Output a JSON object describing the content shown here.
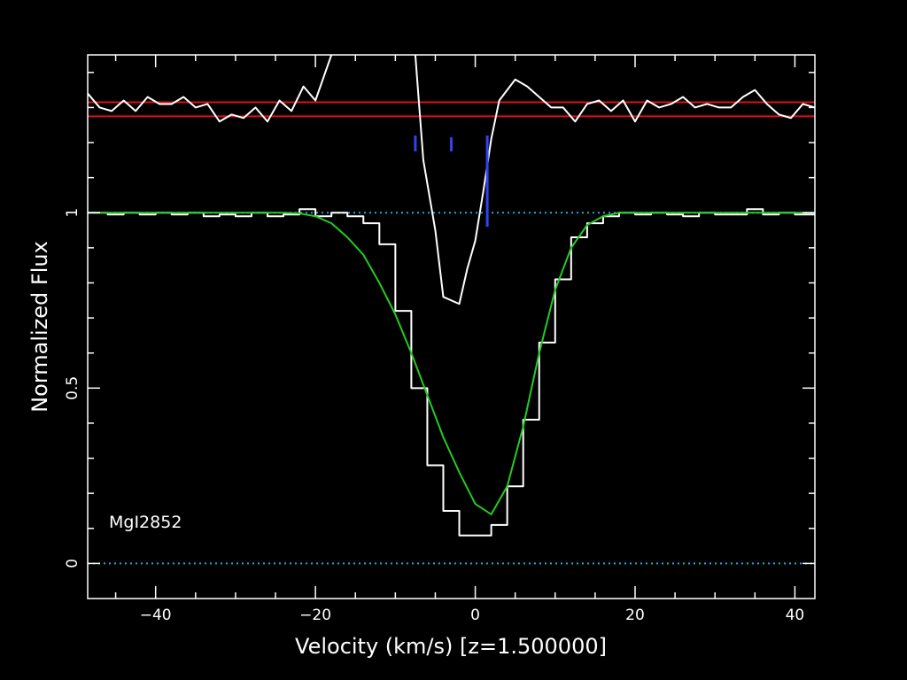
{
  "chart_data": {
    "type": "line",
    "xlabel": "Velocity (km/s) [z=1.500000]",
    "ylabel": "Normalized Flux",
    "annotation": "MgI2852",
    "xlim": [
      -48.5,
      42.5
    ],
    "ylim": [
      -0.1,
      1.45
    ],
    "x_ticks": [
      -40,
      -20,
      0,
      20,
      40
    ],
    "y_ticks": [
      0,
      0.5,
      1
    ],
    "colors": {
      "data": "#ffffff",
      "model": "#22cc22",
      "reference": "#22aadd",
      "threshold": "#dd1111",
      "component": "#3344ee",
      "axes": "#ffffff",
      "background": "#000000"
    },
    "series": [
      {
        "kind": "step",
        "color_key": "data",
        "points": [
          [
            -48.5,
            1.0
          ],
          [
            -46,
            0.995
          ],
          [
            -44,
            1.0
          ],
          [
            -42,
            0.995
          ],
          [
            -40,
            1.0
          ],
          [
            -38,
            0.995
          ],
          [
            -36,
            1.0
          ],
          [
            -34,
            0.99
          ],
          [
            -32,
            0.995
          ],
          [
            -30,
            0.99
          ],
          [
            -28,
            1.0
          ],
          [
            -26,
            0.99
          ],
          [
            -24,
            0.995
          ],
          [
            -22,
            1.01
          ],
          [
            -20,
            0.99
          ],
          [
            -18,
            1.0
          ],
          [
            -16,
            0.99
          ],
          [
            -14,
            0.97
          ],
          [
            -12,
            0.91
          ],
          [
            -10,
            0.72
          ],
          [
            -8,
            0.5
          ],
          [
            -6,
            0.28
          ],
          [
            -4,
            0.15
          ],
          [
            -2,
            0.08
          ],
          [
            0,
            0.08
          ],
          [
            2,
            0.11
          ],
          [
            4,
            0.22
          ],
          [
            6,
            0.41
          ],
          [
            8,
            0.63
          ],
          [
            10,
            0.81
          ],
          [
            12,
            0.93
          ],
          [
            14,
            0.97
          ],
          [
            16,
            0.99
          ],
          [
            18,
            1.0
          ],
          [
            20,
            0.995
          ],
          [
            22,
            1.0
          ],
          [
            24,
            0.995
          ],
          [
            26,
            0.99
          ],
          [
            28,
            1.0
          ],
          [
            30,
            0.995
          ],
          [
            32,
            0.995
          ],
          [
            34,
            1.01
          ],
          [
            36,
            0.995
          ],
          [
            38,
            1.0
          ],
          [
            40,
            0.995
          ],
          [
            42.5,
            1.0
          ]
        ]
      },
      {
        "kind": "line",
        "color_key": "model",
        "points": [
          [
            -48.5,
            1.0
          ],
          [
            -24,
            1.0
          ],
          [
            -22,
            0.998
          ],
          [
            -20,
            0.99
          ],
          [
            -18,
            0.97
          ],
          [
            -16,
            0.93
          ],
          [
            -14,
            0.88
          ],
          [
            -12,
            0.8
          ],
          [
            -10,
            0.71
          ],
          [
            -8,
            0.6
          ],
          [
            -6,
            0.48
          ],
          [
            -4,
            0.36
          ],
          [
            -2,
            0.26
          ],
          [
            0,
            0.17
          ],
          [
            2,
            0.14
          ],
          [
            4,
            0.22
          ],
          [
            6,
            0.39
          ],
          [
            8,
            0.6
          ],
          [
            10,
            0.78
          ],
          [
            12,
            0.9
          ],
          [
            14,
            0.965
          ],
          [
            16,
            0.99
          ],
          [
            18,
            1.0
          ],
          [
            42.5,
            1.0
          ]
        ]
      },
      {
        "kind": "line",
        "color_key": "data",
        "points": [
          [
            -48.5,
            1.34
          ],
          [
            -47,
            1.3
          ],
          [
            -45.5,
            1.29
          ],
          [
            -44,
            1.32
          ],
          [
            -42.5,
            1.29
          ],
          [
            -41,
            1.33
          ],
          [
            -39.5,
            1.31
          ],
          [
            -38,
            1.31
          ],
          [
            -36.5,
            1.33
          ],
          [
            -35,
            1.3
          ],
          [
            -33.5,
            1.31
          ],
          [
            -32,
            1.26
          ],
          [
            -30.5,
            1.28
          ],
          [
            -29,
            1.27
          ],
          [
            -27.5,
            1.3
          ],
          [
            -26,
            1.26
          ],
          [
            -24.5,
            1.32
          ],
          [
            -23,
            1.29
          ],
          [
            -21.5,
            1.36
          ],
          [
            -20,
            1.32
          ],
          [
            -18,
            1.45
          ]
        ]
      },
      {
        "kind": "line",
        "color_key": "data",
        "points": [
          [
            -7.5,
            1.45
          ],
          [
            -6.5,
            1.15
          ],
          [
            -5,
            0.95
          ],
          [
            -4,
            0.76
          ],
          [
            -2,
            0.74
          ],
          [
            -1,
            0.84
          ],
          [
            0,
            0.92
          ],
          [
            1,
            1.06
          ],
          [
            2,
            1.21
          ],
          [
            3,
            1.32
          ],
          [
            5,
            1.38
          ],
          [
            6.5,
            1.36
          ],
          [
            8,
            1.33
          ],
          [
            9.5,
            1.3
          ],
          [
            11,
            1.3
          ],
          [
            12.5,
            1.26
          ],
          [
            14,
            1.31
          ],
          [
            15.5,
            1.32
          ],
          [
            17,
            1.29
          ],
          [
            18.5,
            1.32
          ],
          [
            20,
            1.26
          ],
          [
            21.5,
            1.32
          ],
          [
            23,
            1.3
          ],
          [
            24.5,
            1.31
          ],
          [
            26,
            1.33
          ],
          [
            27.5,
            1.3
          ],
          [
            29,
            1.31
          ],
          [
            30.5,
            1.3
          ],
          [
            32,
            1.3
          ],
          [
            33.5,
            1.33
          ],
          [
            35,
            1.35
          ],
          [
            36.5,
            1.31
          ],
          [
            38,
            1.28
          ],
          [
            39.5,
            1.27
          ],
          [
            41,
            1.31
          ],
          [
            42.5,
            1.3
          ]
        ]
      }
    ],
    "reference_lines": [
      {
        "y": 1.0,
        "style": "dotted",
        "color_key": "reference"
      },
      {
        "y": 0.0,
        "style": "dotted",
        "color_key": "reference"
      },
      {
        "y": 1.315,
        "style": "solid",
        "color_key": "threshold"
      },
      {
        "y": 1.275,
        "style": "solid",
        "color_key": "threshold"
      }
    ],
    "component_markers": [
      {
        "x": -7.5,
        "y_low": 1.175,
        "y_high": 1.22
      },
      {
        "x": -3.0,
        "y_low": 1.175,
        "y_high": 1.215
      },
      {
        "x": 1.5,
        "y_low": 0.96,
        "y_high": 1.22
      }
    ]
  }
}
